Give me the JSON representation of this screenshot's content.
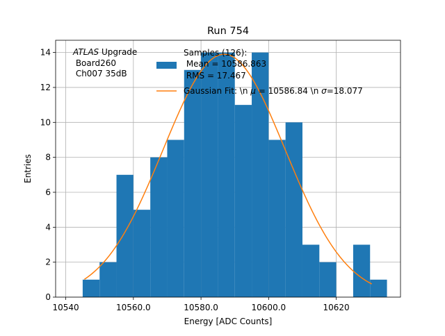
{
  "chart_data": {
    "type": "bar",
    "title": "Run 754",
    "xlabel": "Energy [ADC Counts]",
    "ylabel": "Entries",
    "xlim": [
      10537,
      10639
    ],
    "ylim": [
      0,
      14.7
    ],
    "x_ticks": [
      10540,
      10560,
      10580,
      10600,
      10620
    ],
    "x_tick_labels": [
      "10540",
      "10560.0",
      "10580.0",
      "10600.0",
      "10620"
    ],
    "y_ticks": [
      0,
      2,
      4,
      6,
      8,
      10,
      12,
      14
    ],
    "grid": true,
    "legend_position": "top-center",
    "annotation": {
      "italic": "ATLAS",
      "line1_rest": " Upgrade",
      "line2": " Board260",
      "line3": " Ch007 35dB"
    },
    "histogram": {
      "name_lines": [
        "Samples (126):",
        " Mean = 10586.863",
        " RMS = 17.467"
      ],
      "color": "#1f77b4",
      "bin_width": 5,
      "bin_starts": [
        10545,
        10550,
        10555,
        10560,
        10565,
        10570,
        10575,
        10580,
        10585,
        10590,
        10595,
        10600,
        10605,
        10610,
        10615,
        10620,
        10625,
        10630
      ],
      "values": [
        1,
        2,
        7,
        5,
        8,
        9,
        13,
        14,
        14,
        11,
        14,
        9,
        10,
        3,
        2,
        0,
        3,
        1
      ]
    },
    "fit": {
      "name": "Gaussian Fit: \\n $\\mu$ = 10586.84 \\n $\\sigma$=18.077",
      "name_prefix": "Gaussian Fit: \\n ",
      "name_mu": "μ",
      "name_mid": " = 10586.84 \\n ",
      "name_sigma": "σ",
      "name_suffix": "=18.077",
      "color": "#ff7f0e",
      "amplitude": 13.9,
      "mu": 10586.84,
      "sigma": 18.077,
      "x_range": [
        10545.5,
        10630.5
      ]
    }
  }
}
